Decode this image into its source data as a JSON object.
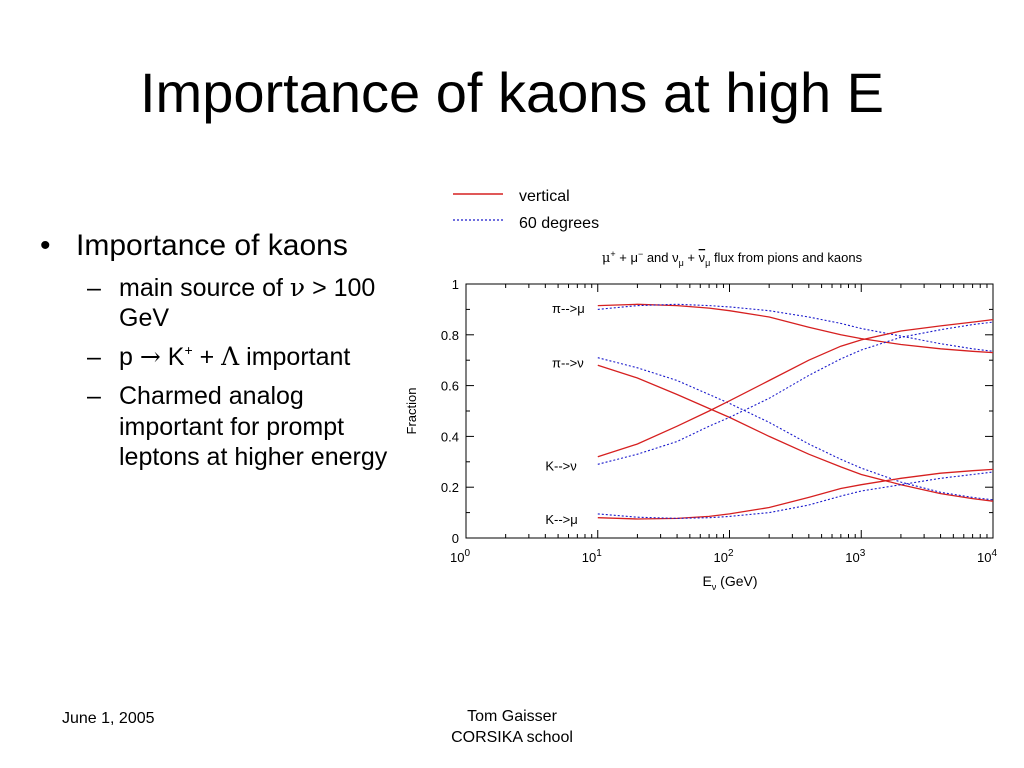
{
  "slide": {
    "title": "Importance of kaons at high E",
    "bullet": "Importance of kaons",
    "subbullets": [
      {
        "parts": [
          "main source of ",
          "ν",
          " > 100 GeV"
        ]
      },
      {
        "parts": [
          "p ",
          "→",
          " K",
          "+",
          " + ",
          "Λ",
          " important"
        ]
      },
      {
        "parts": [
          "Charmed analog important for prompt leptons at higher energy"
        ]
      }
    ],
    "footer_left": "June 1, 2005",
    "footer_center_line1": "Tom Gaisser",
    "footer_center_line2": "CORSIKA school"
  },
  "colors": {
    "vertical": "#d62020",
    "sixty": "#1a1acc"
  },
  "chart_data": {
    "type": "line",
    "title_parts": [
      "μ",
      "+",
      " + μ",
      "−",
      " and ν",
      "μ",
      " + ",
      "ν",
      "μ",
      " flux from pions and kaons"
    ],
    "xlabel_parts": [
      "E",
      "ν",
      " (GeV)"
    ],
    "ylabel": "Fraction",
    "xscale": "log",
    "xlim": [
      1,
      10000
    ],
    "ylim": [
      0,
      1
    ],
    "x_ticks": [
      {
        "base": "10",
        "exp": "0",
        "value": 1
      },
      {
        "base": "10",
        "exp": "1",
        "value": 10
      },
      {
        "base": "10",
        "exp": "2",
        "value": 100
      },
      {
        "base": "10",
        "exp": "3",
        "value": 1000
      },
      {
        "base": "10",
        "exp": "4",
        "value": 10000
      }
    ],
    "y_ticks": [
      "0",
      "0.2",
      "0.4",
      "0.6",
      "0.8",
      "1"
    ],
    "y_tick_values": [
      0,
      0.2,
      0.4,
      0.6,
      0.8,
      1
    ],
    "legend": [
      {
        "label": "vertical",
        "style": "solid",
        "color": "#d62020"
      },
      {
        "label": "60 degrees",
        "style": "dotted",
        "color": "#1a1acc"
      }
    ],
    "annotations": [
      {
        "text": "π-->μ",
        "x": 4.5,
        "y": 0.905
      },
      {
        "text": "π-->ν",
        "x": 4.5,
        "y": 0.69
      },
      {
        "text": "K-->ν",
        "x": 4.0,
        "y": 0.285
      },
      {
        "text": "K-->μ",
        "x": 4.0,
        "y": 0.075
      }
    ],
    "x": [
      10,
      20,
      40,
      70,
      100,
      200,
      400,
      700,
      1000,
      2000,
      4000,
      7000,
      10000
    ],
    "series": [
      {
        "group": "pi-mu",
        "style": "vertical",
        "values": [
          0.915,
          0.92,
          0.915,
          0.905,
          0.895,
          0.87,
          0.83,
          0.8,
          0.785,
          0.762,
          0.745,
          0.735,
          0.73
        ]
      },
      {
        "group": "pi-mu",
        "style": "60 degrees",
        "values": [
          0.9,
          0.915,
          0.92,
          0.915,
          0.91,
          0.895,
          0.87,
          0.845,
          0.825,
          0.795,
          0.765,
          0.745,
          0.735
        ]
      },
      {
        "group": "pi-nu",
        "style": "vertical",
        "values": [
          0.68,
          0.63,
          0.565,
          0.51,
          0.475,
          0.4,
          0.33,
          0.28,
          0.25,
          0.21,
          0.175,
          0.155,
          0.145
        ]
      },
      {
        "group": "pi-nu",
        "style": "60 degrees",
        "values": [
          0.71,
          0.67,
          0.62,
          0.565,
          0.53,
          0.455,
          0.37,
          0.31,
          0.275,
          0.22,
          0.18,
          0.16,
          0.15
        ]
      },
      {
        "group": "K-nu",
        "style": "vertical",
        "values": [
          0.32,
          0.37,
          0.44,
          0.5,
          0.54,
          0.62,
          0.7,
          0.755,
          0.78,
          0.815,
          0.835,
          0.85,
          0.86
        ]
      },
      {
        "group": "K-nu",
        "style": "60 degrees",
        "values": [
          0.29,
          0.33,
          0.38,
          0.44,
          0.475,
          0.55,
          0.64,
          0.705,
          0.74,
          0.79,
          0.82,
          0.84,
          0.85
        ]
      },
      {
        "group": "K-mu",
        "style": "vertical",
        "values": [
          0.08,
          0.075,
          0.077,
          0.085,
          0.095,
          0.12,
          0.16,
          0.195,
          0.21,
          0.235,
          0.255,
          0.265,
          0.27
        ]
      },
      {
        "group": "K-mu",
        "style": "60 degrees",
        "values": [
          0.095,
          0.082,
          0.077,
          0.08,
          0.085,
          0.1,
          0.13,
          0.165,
          0.185,
          0.21,
          0.235,
          0.25,
          0.26
        ]
      }
    ]
  }
}
